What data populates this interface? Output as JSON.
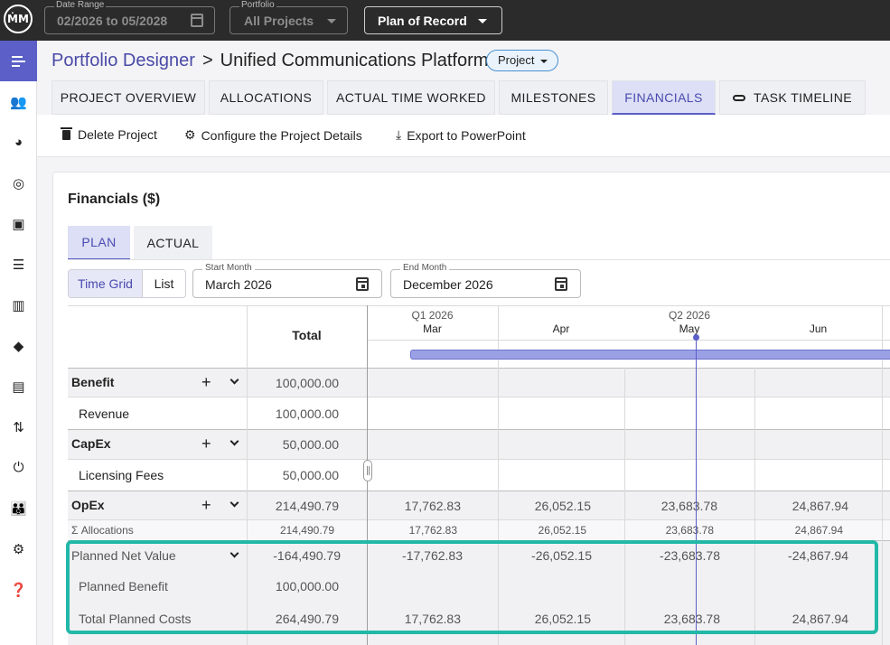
{
  "topbar": {
    "logo": "ṀM",
    "date_range": {
      "label": "Date Range",
      "value": "02/2026 to 05/2028"
    },
    "portfolio": {
      "label": "Portfolio",
      "value": "All Projects"
    },
    "plan": {
      "value": "Plan of Record"
    }
  },
  "sidebar": {
    "items": [
      {
        "icon": "menu-icon",
        "active": true
      },
      {
        "icon": "people-list-icon"
      },
      {
        "icon": "pie-icon"
      },
      {
        "icon": "target-icon"
      },
      {
        "icon": "clipboard-icon"
      },
      {
        "icon": "list-icon"
      },
      {
        "icon": "columns-icon"
      },
      {
        "icon": "directions-icon"
      },
      {
        "icon": "document-icon"
      },
      {
        "icon": "swap-icon"
      },
      {
        "icon": "plug-icon"
      },
      {
        "icon": "group-icon"
      },
      {
        "icon": "gear-icon"
      },
      {
        "icon": "help-icon"
      }
    ]
  },
  "header": {
    "breadcrumb_root": "Portfolio Designer",
    "breadcrumb_sep": ">",
    "project_name": "Unified Communications Platform",
    "type_chip": "Project"
  },
  "tabs": [
    "PROJECT OVERVIEW",
    "ALLOCATIONS",
    "ACTUAL TIME WORKED",
    "MILESTONES",
    "FINANCIALS",
    "TASK TIMELINE"
  ],
  "active_tab": "FINANCIALS",
  "actions": {
    "delete": "Delete Project",
    "configure": "Configure the Project Details",
    "export": "Export to PowerPoint"
  },
  "financials": {
    "title": "Financials ($)",
    "subtabs": [
      "PLAN",
      "ACTUAL"
    ],
    "view_toggle": {
      "time_grid": "Time Grid",
      "list": "List"
    },
    "start_month": {
      "label": "Start Month",
      "value": "March 2026"
    },
    "end_month": {
      "label": "End Month",
      "value": "December 2026"
    },
    "grid": {
      "total_header": "Total",
      "quarters": {
        "q1": "Q1 2026",
        "q2": "Q2 2026"
      },
      "months": [
        "Mar",
        "Apr",
        "May",
        "Jun"
      ],
      "rows": {
        "benefit": {
          "label": "Benefit",
          "total": "100,000.00"
        },
        "revenue": {
          "label": "Revenue",
          "total": "100,000.00"
        },
        "capex": {
          "label": "CapEx",
          "total": "50,000.00"
        },
        "licensing": {
          "label": "Licensing Fees",
          "total": "50,000.00"
        },
        "opex": {
          "label": "OpEx",
          "total": "214,490.79",
          "months": [
            "17,762.83",
            "26,052.15",
            "23,683.78",
            "24,867.94"
          ]
        },
        "allocations": {
          "label": "Σ Allocations",
          "total": "214,490.79",
          "months": [
            "17,762.83",
            "26,052.15",
            "23,683.78",
            "24,867.94"
          ]
        },
        "planned_net_value": {
          "label": "Planned Net Value",
          "total": "-164,490.79",
          "months": [
            "-17,762.83",
            "-26,052.15",
            "-23,683.78",
            "-24,867.94"
          ]
        },
        "planned_benefit": {
          "label": "Planned Benefit",
          "total": "100,000.00"
        },
        "total_planned_costs": {
          "label": "Total Planned Costs",
          "total": "264,490.79",
          "months": [
            "17,762.83",
            "26,052.15",
            "23,683.78",
            "24,867.94"
          ]
        }
      }
    }
  }
}
